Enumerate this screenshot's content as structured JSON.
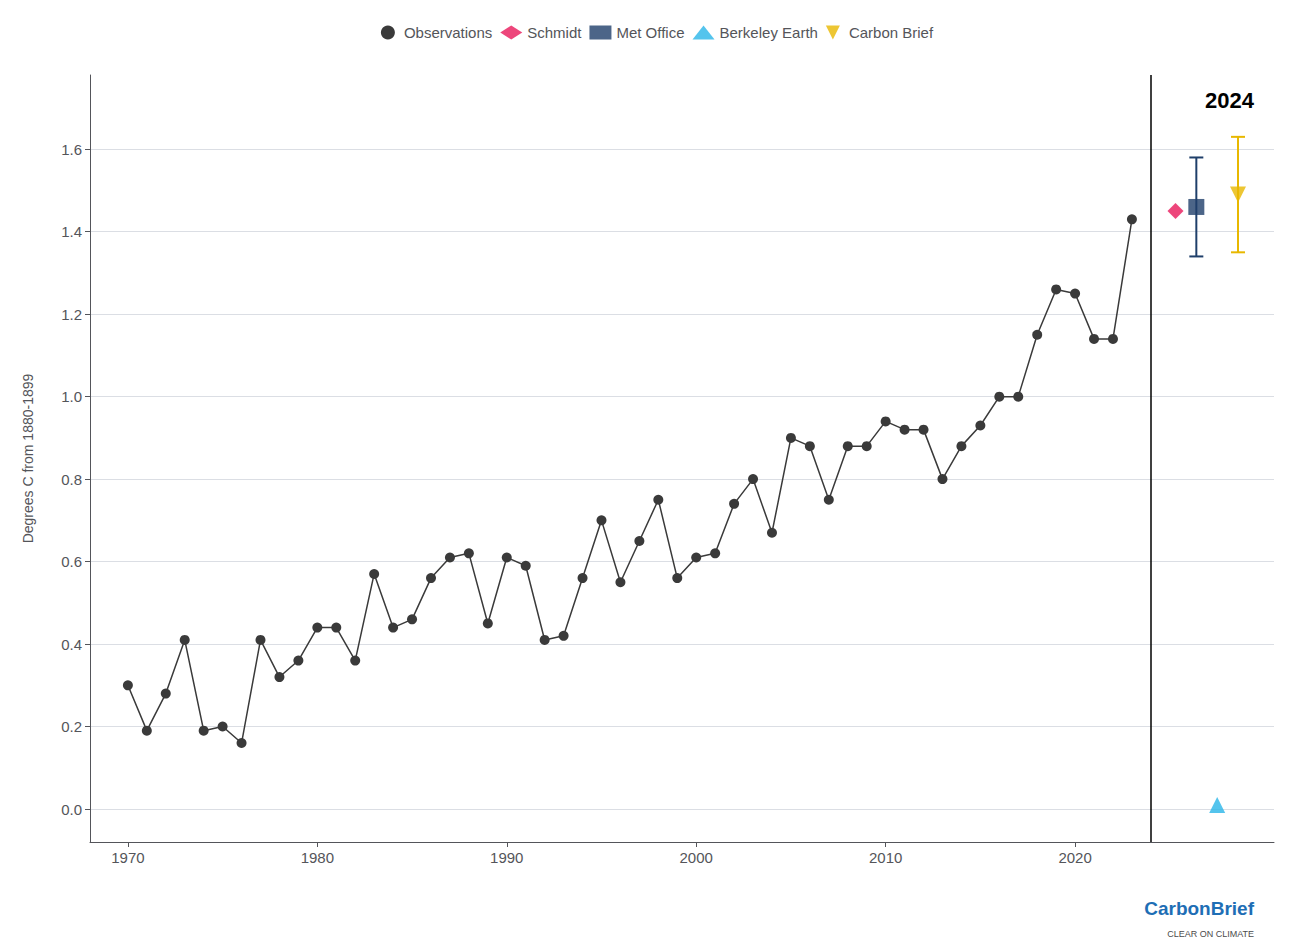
{
  "chart_data": {
    "type": "line",
    "title": "2024",
    "ylabel": "Degrees C from 1880-1899",
    "xlim": [
      1968,
      2030.5
    ],
    "xticks": [
      1970,
      1980,
      1990,
      2000,
      2010,
      2020
    ],
    "ylim": [
      -0.08,
      1.78
    ],
    "yticks": [
      {
        "value": 0.0,
        "label": "0.0"
      },
      0.2,
      0.4,
      0.6,
      0.8,
      {
        "value": 1.0,
        "label": "1.0"
      },
      1.2,
      1.4,
      1.6
    ],
    "grid": true,
    "legend": "top",
    "vline_x": 2024,
    "series": [
      {
        "name": "Observations",
        "type": "line",
        "marker": "circle",
        "color": "#3A3A3A",
        "x": [
          1970,
          1971,
          1972,
          1973,
          1974,
          1975,
          1976,
          1977,
          1978,
          1979,
          1980,
          1981,
          1982,
          1983,
          1984,
          1985,
          1986,
          1987,
          1988,
          1989,
          1990,
          1991,
          1992,
          1993,
          1994,
          1995,
          1996,
          1997,
          1998,
          1999,
          2000,
          2001,
          2002,
          2003,
          2004,
          2005,
          2006,
          2007,
          2008,
          2009,
          2010,
          2011,
          2012,
          2013,
          2014,
          2015,
          2016,
          2017,
          2018,
          2019,
          2020,
          2021,
          2022,
          2023
        ],
        "values": [
          0.3,
          0.19,
          0.28,
          0.41,
          0.19,
          0.2,
          0.16,
          0.41,
          0.32,
          0.36,
          0.44,
          0.44,
          0.36,
          0.57,
          0.44,
          0.46,
          0.56,
          0.61,
          0.62,
          0.45,
          0.61,
          0.59,
          0.41,
          0.42,
          0.56,
          0.7,
          0.55,
          0.65,
          0.75,
          0.56,
          0.61,
          0.62,
          0.74,
          0.8,
          0.67,
          0.9,
          0.88,
          0.75,
          0.88,
          0.88,
          0.94,
          0.92,
          0.92,
          0.8,
          0.88,
          0.93,
          1.0,
          1.0,
          1.15,
          1.26,
          1.25,
          1.14,
          1.14,
          1.43
        ]
      },
      {
        "name": "Schmidt",
        "type": "scatter",
        "marker": "diamond",
        "color": "#E8185A",
        "x": [
          2025.3
        ],
        "values": [
          1.45
        ]
      },
      {
        "name": "Met Office",
        "type": "scatter",
        "marker": "square",
        "color": "#1F3F6A",
        "x": [
          2026.4
        ],
        "values": [
          1.46
        ],
        "error_low": [
          0.12
        ],
        "error_high": [
          0.12
        ]
      },
      {
        "name": "Berkeley Earth",
        "type": "scatter",
        "marker": "triangle-up",
        "color": "#29B5E8",
        "x": [
          2027.5
        ],
        "values": [
          0.01
        ]
      },
      {
        "name": "Carbon Brief",
        "type": "scatter",
        "marker": "triangle-down",
        "color": "#E8B800",
        "x": [
          2028.6
        ],
        "values": [
          1.49
        ],
        "error_low": [
          0.14
        ],
        "error_high": [
          0.14
        ]
      }
    ],
    "annotations": [
      {
        "text": "CarbonBrief",
        "color": "#1E6EB5"
      },
      {
        "text": "CLEAR ON CLIMATE",
        "color": "#4B4B4B"
      }
    ]
  }
}
